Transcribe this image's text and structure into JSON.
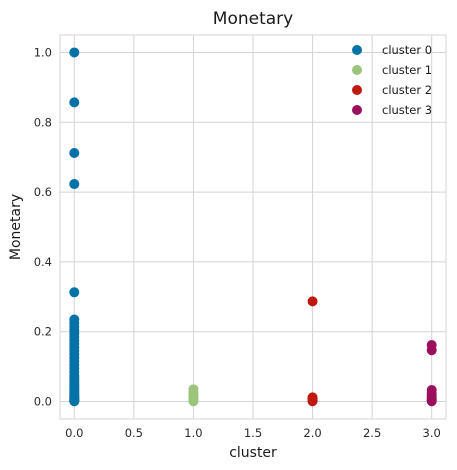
{
  "chart_data": {
    "type": "scatter",
    "title": "Monetary",
    "xlabel": "cluster",
    "ylabel": "Monetary",
    "xlim": [
      -0.12,
      3.12
    ],
    "ylim": [
      -0.05,
      1.05
    ],
    "xticks": [
      0.0,
      0.5,
      1.0,
      1.5,
      2.0,
      2.5,
      3.0
    ],
    "xtick_labels": [
      "0.0",
      "0.5",
      "1.0",
      "1.5",
      "2.0",
      "2.5",
      "3.0"
    ],
    "yticks": [
      0.0,
      0.2,
      0.4,
      0.6,
      0.8,
      1.0
    ],
    "ytick_labels": [
      "0.0",
      "0.2",
      "0.4",
      "0.6",
      "0.8",
      "1.0"
    ],
    "grid": true,
    "legend": "top-right",
    "series": [
      {
        "name": "cluster 0",
        "color": "#0072A7",
        "x": [
          0,
          0,
          0,
          0,
          0,
          0,
          0,
          0,
          0,
          0,
          0,
          0,
          0,
          0,
          0,
          0,
          0,
          0,
          0,
          0,
          0,
          0,
          0,
          0,
          0,
          0,
          0,
          0,
          0,
          0,
          0,
          0,
          0,
          0,
          0,
          0,
          0,
          0,
          0,
          0,
          0
        ],
        "y": [
          1.0,
          0.857,
          0.712,
          0.623,
          0.313,
          0.235,
          0.225,
          0.215,
          0.205,
          0.195,
          0.185,
          0.175,
          0.165,
          0.155,
          0.145,
          0.135,
          0.125,
          0.115,
          0.105,
          0.095,
          0.085,
          0.075,
          0.068,
          0.062,
          0.056,
          0.05,
          0.045,
          0.04,
          0.035,
          0.03,
          0.026,
          0.022,
          0.018,
          0.015,
          0.012,
          0.009,
          0.007,
          0.005,
          0.003,
          0.002,
          0.001
        ]
      },
      {
        "name": "cluster 1",
        "color": "#9CC47A",
        "x": [
          1,
          1,
          1,
          1,
          1,
          1,
          1,
          1
        ],
        "y": [
          0.035,
          0.027,
          0.02,
          0.015,
          0.01,
          0.006,
          0.003,
          0.001
        ]
      },
      {
        "name": "cluster 2",
        "color": "#C0170E",
        "x": [
          2,
          2,
          2,
          2,
          2,
          2
        ],
        "y": [
          0.287,
          0.012,
          0.008,
          0.005,
          0.003,
          0.001
        ]
      },
      {
        "name": "cluster 3",
        "color": "#9C0F5E",
        "x": [
          3,
          3,
          3,
          3,
          3,
          3,
          3,
          3,
          3
        ],
        "y": [
          0.162,
          0.147,
          0.033,
          0.022,
          0.015,
          0.01,
          0.006,
          0.003,
          0.001
        ]
      }
    ]
  }
}
